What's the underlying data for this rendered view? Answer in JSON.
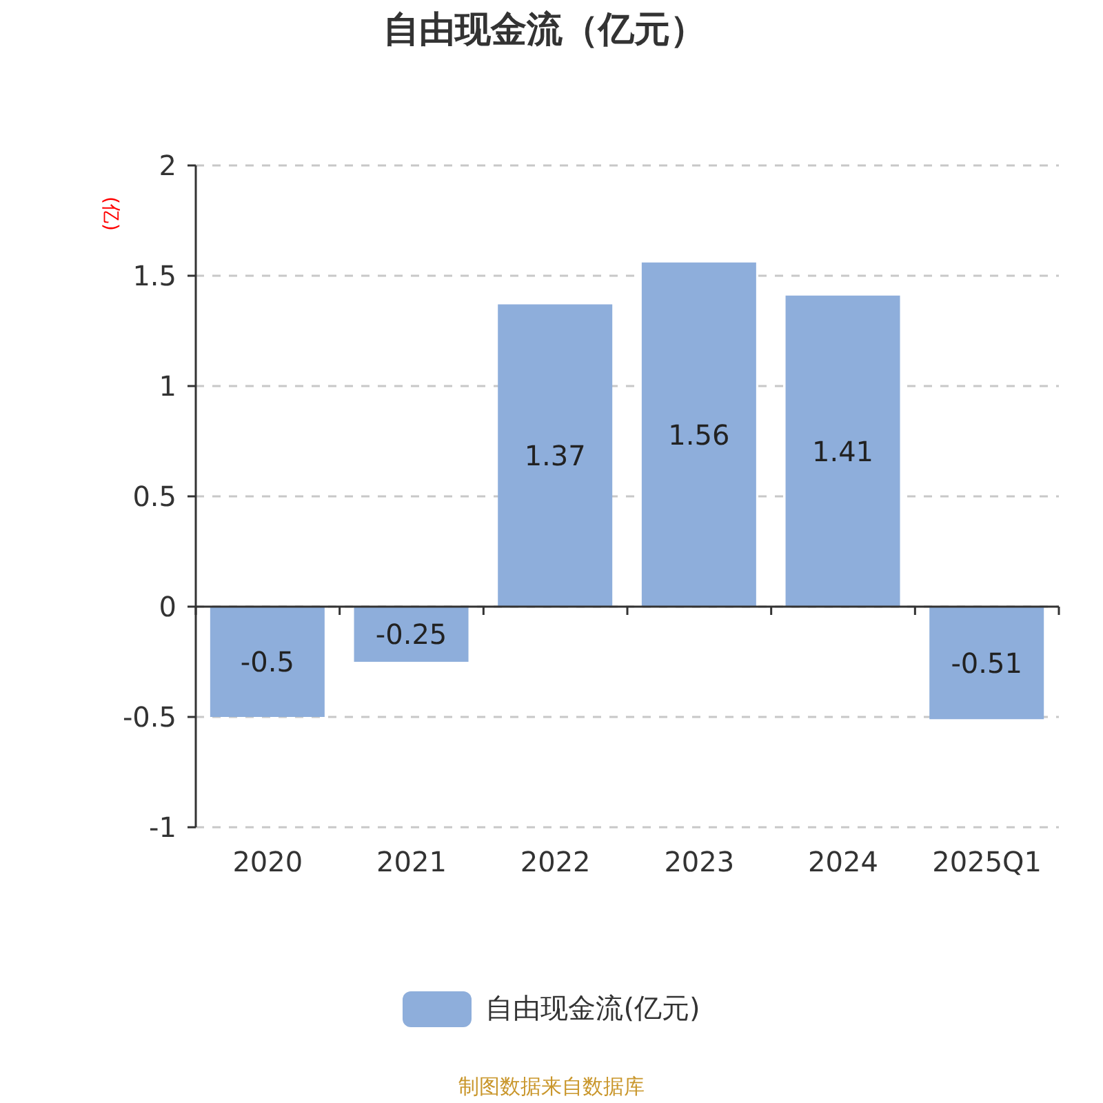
{
  "chart_data": {
    "type": "bar",
    "title": "自由现金流（亿元）",
    "ylabel": "(亿)",
    "categories": [
      "2020",
      "2021",
      "2022",
      "2023",
      "2024",
      "2025Q1"
    ],
    "series": [
      {
        "name": "自由现金流(亿元)",
        "color": "#8eaedb",
        "values": [
          -0.5,
          -0.25,
          1.37,
          1.56,
          1.41,
          -0.51
        ]
      }
    ],
    "ylim": [
      -1,
      2
    ],
    "yticks": [
      -1,
      -0.5,
      0,
      0.5,
      1,
      1.5,
      2
    ],
    "grid": "y",
    "legend": "bottom",
    "data_labels": true,
    "annotations": [
      "制图数据来自数据库"
    ]
  }
}
